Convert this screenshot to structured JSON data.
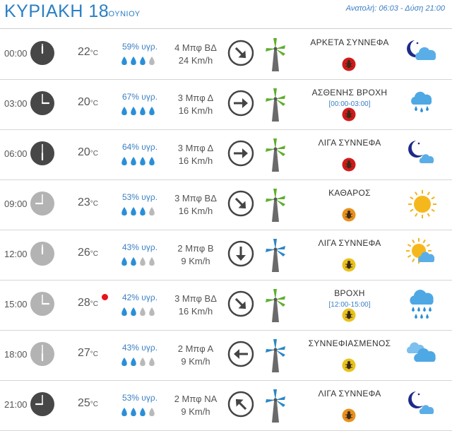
{
  "header": {
    "day": "ΚΥΡΙΑΚΗ 18",
    "month": "ΙΟΥΝΙΟΥ",
    "sun_times": "Ανατολή: 06:03 - Δύση 21:00"
  },
  "colors": {
    "accent": "#2a7fc4",
    "dark_clock": "#474747",
    "light_clock": "#b3b3b3",
    "hot_dot": "#e8121a",
    "uv_red": "#d01a1a",
    "uv_orange": "#e8901c",
    "uv_yellow": "#e8c21c"
  },
  "rows": [
    {
      "time": "00:00",
      "clock_style": "dark",
      "temp": "22",
      "hot": false,
      "humidity": "59% υγρ.",
      "drops_filled": 3,
      "wind_force": "4 Μπφ ΒΔ",
      "wind_speed": "24 Km/h",
      "direction": "arrow-down-right-icon",
      "turbine_color": "green",
      "condition": "ΑΡΚΕΤΑ ΣΥΝΝΕΦΑ",
      "period": "",
      "uv_level": "red",
      "weather_icon": "moon-cloud-icon"
    },
    {
      "time": "03:00",
      "clock_style": "dark",
      "temp": "20",
      "hot": false,
      "humidity": "67% υγρ.",
      "drops_filled": 4,
      "wind_force": "3 Μπφ Δ",
      "wind_speed": "16 Km/h",
      "direction": "arrow-right-icon",
      "turbine_color": "green",
      "condition": "ΑΣΘΕΝΗΣ ΒΡΟΧΗ",
      "period": "[00:00-03:00]",
      "uv_level": "red",
      "weather_icon": "rain-light-icon"
    },
    {
      "time": "06:00",
      "clock_style": "dark",
      "temp": "20",
      "hot": false,
      "humidity": "64% υγρ.",
      "drops_filled": 4,
      "wind_force": "3 Μπφ Δ",
      "wind_speed": "16 Km/h",
      "direction": "arrow-right-icon",
      "turbine_color": "green",
      "condition": "ΛΙΓΑ ΣΥΝΝΕΦΑ",
      "period": "",
      "uv_level": "red",
      "weather_icon": "moon-small-cloud-icon"
    },
    {
      "time": "09:00",
      "clock_style": "light",
      "temp": "23",
      "hot": false,
      "humidity": "53% υγρ.",
      "drops_filled": 3,
      "wind_force": "3 Μπφ ΒΔ",
      "wind_speed": "16 Km/h",
      "direction": "arrow-down-right-icon",
      "turbine_color": "green",
      "condition": "ΚΑΘΑΡΟΣ",
      "period": "",
      "uv_level": "orange",
      "weather_icon": "sun-icon"
    },
    {
      "time": "12:00",
      "clock_style": "light",
      "temp": "26",
      "hot": false,
      "humidity": "43% υγρ.",
      "drops_filled": 2,
      "wind_force": "2 Μπφ Β",
      "wind_speed": "9 Km/h",
      "direction": "arrow-down-icon",
      "turbine_color": "blue",
      "condition": "ΛΙΓΑ ΣΥΝΝΕΦΑ",
      "period": "",
      "uv_level": "yellow",
      "weather_icon": "sun-cloud-icon"
    },
    {
      "time": "15:00",
      "clock_style": "light",
      "temp": "28",
      "hot": true,
      "humidity": "42% υγρ.",
      "drops_filled": 2,
      "wind_force": "3 Μπφ ΒΔ",
      "wind_speed": "16 Km/h",
      "direction": "arrow-down-right-icon",
      "turbine_color": "green",
      "condition": "ΒΡΟΧΗ",
      "period": "[12:00-15:00]",
      "uv_level": "yellow",
      "weather_icon": "rain-heavy-icon"
    },
    {
      "time": "18:00",
      "clock_style": "light",
      "temp": "27",
      "hot": false,
      "humidity": "43% υγρ.",
      "drops_filled": 2,
      "wind_force": "2 Μπφ Α",
      "wind_speed": "9 Km/h",
      "direction": "arrow-left-icon",
      "turbine_color": "blue",
      "condition": "ΣΥΝΝΕΦΙΑΣΜΕΝΟΣ",
      "period": "",
      "uv_level": "yellow",
      "weather_icon": "clouds-icon"
    },
    {
      "time": "21:00",
      "clock_style": "dark",
      "temp": "25",
      "hot": false,
      "humidity": "53% υγρ.",
      "drops_filled": 3,
      "wind_force": "2 Μπφ ΝΑ",
      "wind_speed": "9 Km/h",
      "direction": "arrow-up-left-icon",
      "turbine_color": "blue",
      "condition": "ΛΙΓΑ ΣΥΝΝΕΦΑ",
      "period": "",
      "uv_level": "orange",
      "weather_icon": "moon-small-cloud-icon"
    }
  ]
}
